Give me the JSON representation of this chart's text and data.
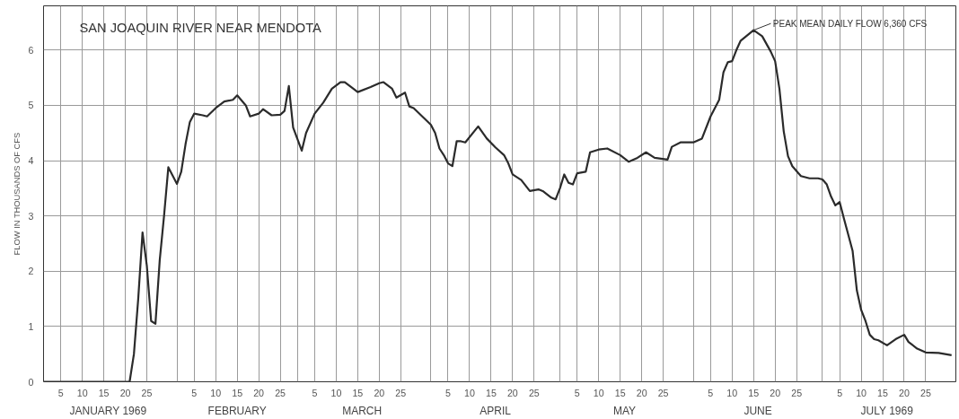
{
  "chart_data": {
    "type": "line",
    "title": "SAN JOAQUIN RIVER NEAR MENDOTA",
    "ylabel": "FLOW IN THOUSANDS OF CFS",
    "x": [
      "1969-01-01",
      "1969-01-10",
      "1969-01-21",
      "1969-01-22",
      "1969-01-23",
      "1969-01-24",
      "1969-01-25",
      "1969-01-26",
      "1969-01-27",
      "1969-01-28",
      "1969-01-29",
      "1969-01-30",
      "1969-02-01",
      "1969-02-02",
      "1969-02-03",
      "1969-02-04",
      "1969-02-05",
      "1969-02-07",
      "1969-02-08",
      "1969-02-10",
      "1969-02-12",
      "1969-02-14",
      "1969-02-15",
      "1969-02-17",
      "1969-02-18",
      "1969-02-20",
      "1969-02-21",
      "1969-02-23",
      "1969-02-25",
      "1969-02-26",
      "1969-02-27",
      "1969-02-28",
      "1969-03-02",
      "1969-03-03",
      "1969-03-05",
      "1969-03-07",
      "1969-03-09",
      "1969-03-11",
      "1969-03-12",
      "1969-03-14",
      "1969-03-15",
      "1969-03-18",
      "1969-03-20",
      "1969-03-21",
      "1969-03-23",
      "1969-03-24",
      "1969-03-26",
      "1969-03-27",
      "1969-03-28",
      "1969-03-30",
      "1969-04-01",
      "1969-04-02",
      "1969-04-03",
      "1969-04-04",
      "1969-04-05",
      "1969-04-06",
      "1969-04-07",
      "1969-04-08",
      "1969-04-09",
      "1969-04-12",
      "1969-04-14",
      "1969-04-16",
      "1969-04-18",
      "1969-04-19",
      "1969-04-20",
      "1969-04-22",
      "1969-04-24",
      "1969-04-26",
      "1969-04-27",
      "1969-04-29",
      "1969-04-30",
      "1969-05-01",
      "1969-05-02",
      "1969-05-03",
      "1969-05-04",
      "1969-05-05",
      "1969-05-07",
      "1969-05-08",
      "1969-05-10",
      "1969-05-12",
      "1969-05-15",
      "1969-05-17",
      "1969-05-19",
      "1969-05-21",
      "1969-05-23",
      "1969-05-26",
      "1969-05-27",
      "1969-05-29",
      "1969-05-31",
      "1969-06-01",
      "1969-06-03",
      "1969-06-05",
      "1969-06-07",
      "1969-06-08",
      "1969-06-09",
      "1969-06-10",
      "1969-06-11",
      "1969-06-12",
      "1969-06-15",
      "1969-06-17",
      "1969-06-19",
      "1969-06-20",
      "1969-06-21",
      "1969-06-22",
      "1969-06-23",
      "1969-06-24",
      "1969-06-26",
      "1969-06-28",
      "1969-06-30",
      "1969-07-01",
      "1969-07-02",
      "1969-07-03",
      "1969-07-04",
      "1969-07-05",
      "1969-07-06",
      "1969-07-08",
      "1969-07-09",
      "1969-07-10",
      "1969-07-11",
      "1969-07-12",
      "1969-07-13",
      "1969-07-14",
      "1969-07-16",
      "1969-07-18",
      "1969-07-20",
      "1969-07-21",
      "1969-07-23",
      "1969-07-25",
      "1969-07-28",
      "1969-07-31"
    ],
    "series": [
      {
        "color": "#2b2b2b",
        "values": [
          0,
          0,
          0,
          0.5,
          1.5,
          2.7,
          2.1,
          1.1,
          1.05,
          2.2,
          3.0,
          3.88,
          3.58,
          3.8,
          4.3,
          4.7,
          4.85,
          4.82,
          4.8,
          4.95,
          5.07,
          5.1,
          5.18,
          5.0,
          4.8,
          4.85,
          4.93,
          4.82,
          4.83,
          4.9,
          5.35,
          4.6,
          4.18,
          4.5,
          4.85,
          5.05,
          5.3,
          5.42,
          5.42,
          5.3,
          5.24,
          5.33,
          5.4,
          5.42,
          5.3,
          5.14,
          5.23,
          4.98,
          4.95,
          4.8,
          4.65,
          4.5,
          4.22,
          4.1,
          3.95,
          3.9,
          4.35,
          4.35,
          4.33,
          4.62,
          4.4,
          4.24,
          4.1,
          3.95,
          3.75,
          3.65,
          3.45,
          3.48,
          3.45,
          3.33,
          3.3,
          3.5,
          3.75,
          3.6,
          3.57,
          3.77,
          3.8,
          4.15,
          4.2,
          4.22,
          4.1,
          3.98,
          4.05,
          4.15,
          4.05,
          4.02,
          4.25,
          4.33,
          4.33,
          4.33,
          4.4,
          4.8,
          5.1,
          5.6,
          5.78,
          5.8,
          6.0,
          6.17,
          6.36,
          6.25,
          5.97,
          5.8,
          5.3,
          4.53,
          4.08,
          3.9,
          3.72,
          3.68,
          3.68,
          3.66,
          3.57,
          3.35,
          3.19,
          3.25,
          2.95,
          2.37,
          1.65,
          1.3,
          1.1,
          0.85,
          0.77,
          0.75,
          0.66,
          0.77,
          0.85,
          0.72,
          0.6,
          0.53,
          0.52,
          0.48
        ]
      }
    ],
    "xlim": [
      "1969-01-01",
      "1969-08-01"
    ],
    "xticks": [
      {
        "value": "1969-01-05",
        "label": "5"
      },
      {
        "value": "1969-01-10",
        "label": "10"
      },
      {
        "value": "1969-01-15",
        "label": "15"
      },
      {
        "value": "1969-01-20",
        "label": "20"
      },
      {
        "value": "1969-01-25",
        "label": "25"
      },
      {
        "value": "1969-02-01",
        "label": null
      },
      {
        "value": "1969-02-05",
        "label": "5"
      },
      {
        "value": "1969-02-10",
        "label": "10"
      },
      {
        "value": "1969-02-15",
        "label": "15"
      },
      {
        "value": "1969-02-20",
        "label": "20"
      },
      {
        "value": "1969-02-25",
        "label": "25"
      },
      {
        "value": "1969-03-01",
        "label": null
      },
      {
        "value": "1969-03-05",
        "label": "5"
      },
      {
        "value": "1969-03-10",
        "label": "10"
      },
      {
        "value": "1969-03-15",
        "label": "15"
      },
      {
        "value": "1969-03-20",
        "label": "20"
      },
      {
        "value": "1969-03-25",
        "label": "25"
      },
      {
        "value": "1969-04-01",
        "label": null
      },
      {
        "value": "1969-04-05",
        "label": "5"
      },
      {
        "value": "1969-04-10",
        "label": "10"
      },
      {
        "value": "1969-04-15",
        "label": "15"
      },
      {
        "value": "1969-04-20",
        "label": "20"
      },
      {
        "value": "1969-04-25",
        "label": "25"
      },
      {
        "value": "1969-05-01",
        "label": null
      },
      {
        "value": "1969-05-05",
        "label": "5"
      },
      {
        "value": "1969-05-10",
        "label": "10"
      },
      {
        "value": "1969-05-15",
        "label": "15"
      },
      {
        "value": "1969-05-20",
        "label": "20"
      },
      {
        "value": "1969-05-25",
        "label": "25"
      },
      {
        "value": "1969-06-01",
        "label": null
      },
      {
        "value": "1969-06-05",
        "label": "5"
      },
      {
        "value": "1969-06-10",
        "label": "10"
      },
      {
        "value": "1969-06-15",
        "label": "15"
      },
      {
        "value": "1969-06-20",
        "label": "20"
      },
      {
        "value": "1969-06-25",
        "label": "25"
      },
      {
        "value": "1969-07-01",
        "label": null
      },
      {
        "value": "1969-07-05",
        "label": "5"
      },
      {
        "value": "1969-07-10",
        "label": "10"
      },
      {
        "value": "1969-07-15",
        "label": "15"
      },
      {
        "value": "1969-07-20",
        "label": "20"
      },
      {
        "value": "1969-07-25",
        "label": "25"
      }
    ],
    "x2lim": [
      "1969-01-01",
      "1969-08-01"
    ],
    "x2ticks": [
      {
        "value": "1969-01-16",
        "label": "JANUARY 1969"
      },
      {
        "value": "1969-02-15",
        "label": "FEBRUARY"
      },
      {
        "value": "1969-03-16",
        "label": "MARCH"
      },
      {
        "value": "1969-04-16",
        "label": "APRIL"
      },
      {
        "value": "1969-05-16",
        "label": "MAY"
      },
      {
        "value": "1969-06-16",
        "label": "JUNE"
      },
      {
        "value": "1969-07-16",
        "label": "JULY 1969"
      }
    ],
    "ylim": [
      0,
      6.8
    ],
    "yticks": [
      0,
      1,
      2,
      3,
      4,
      5,
      6
    ],
    "grid": true,
    "annotations": [
      {
        "text": "PEAK MEAN DAILY FLOW 6,360 CFS",
        "x": "1969-06-15",
        "y": 6.36
      }
    ]
  }
}
